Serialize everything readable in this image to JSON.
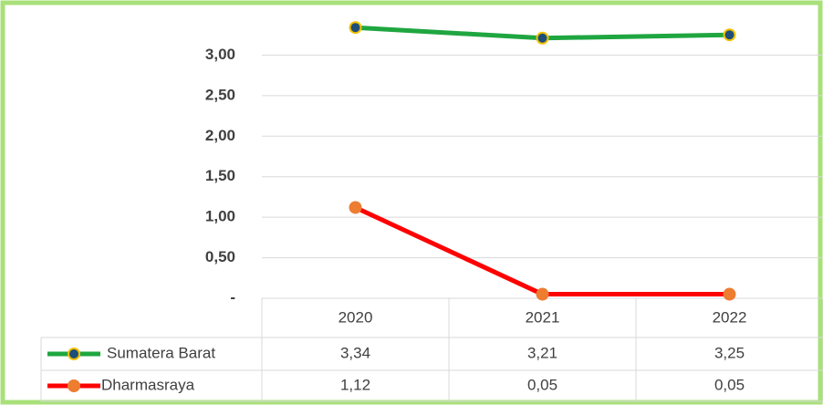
{
  "chart_data": {
    "type": "line",
    "categories": [
      "2020",
      "2021",
      "2022"
    ],
    "series": [
      {
        "name": "Sumatera Barat",
        "color": "#1fa640",
        "marker_color": "#1f4e79",
        "marker_edge": "#f2c200",
        "values": [
          3.34,
          3.21,
          3.25
        ],
        "value_labels": [
          "3,34",
          "3,21",
          "3,25"
        ]
      },
      {
        "name": "Dharmasraya",
        "color": "#ff0000",
        "marker_color": "#ed7d31",
        "marker_edge": "#ed7d31",
        "values": [
          1.12,
          0.05,
          0.05
        ],
        "value_labels": [
          "1,12",
          "0,05",
          "0,05"
        ]
      }
    ],
    "ylim": [
      0,
      3.5
    ],
    "yticks": [
      {
        "value": 0,
        "label": "-"
      },
      {
        "value": 0.5,
        "label": "0,50"
      },
      {
        "value": 1,
        "label": "1,00"
      },
      {
        "value": 1.5,
        "label": "1,50"
      },
      {
        "value": 2,
        "label": "2,00"
      },
      {
        "value": 2.5,
        "label": "2,50"
      },
      {
        "value": 3,
        "label": "3,00"
      }
    ],
    "grid": true
  }
}
